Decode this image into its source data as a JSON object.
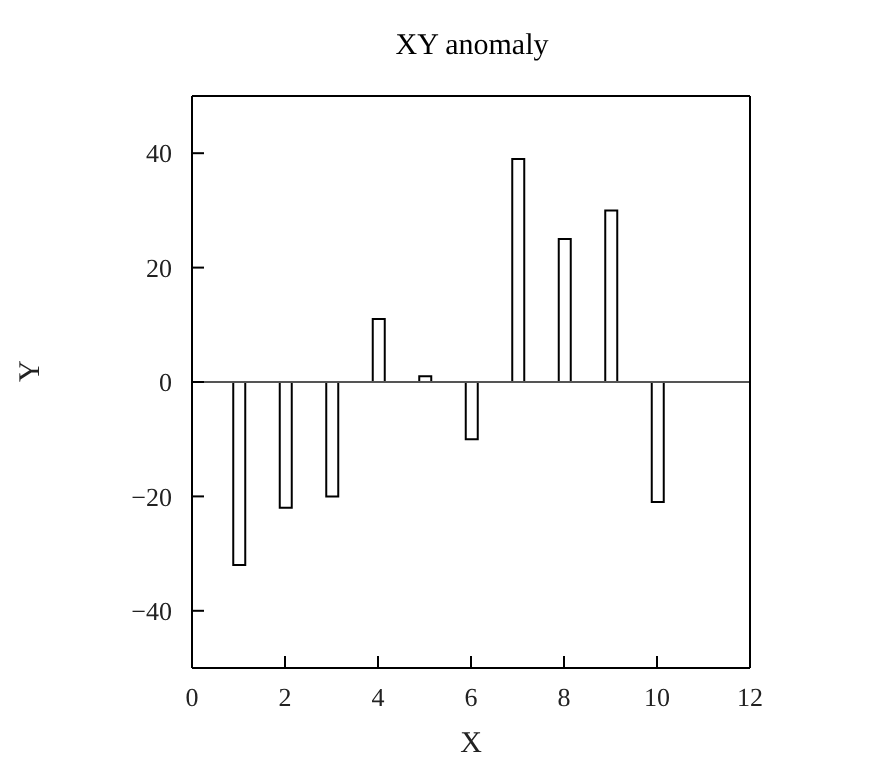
{
  "chart_data": {
    "type": "bar",
    "title": "XY anomaly",
    "xlabel": "X",
    "ylabel": "Y",
    "x": [
      1,
      2,
      3,
      4,
      5,
      6,
      7,
      8,
      9,
      10
    ],
    "values": [
      -32,
      -22,
      -20,
      11,
      1,
      -10,
      39,
      25,
      30,
      -21
    ],
    "color": "#000000",
    "xlim": [
      0,
      12
    ],
    "xticks": [
      0,
      2,
      4,
      6,
      8,
      10,
      12
    ],
    "ylim": [
      -50,
      50
    ],
    "yticks": [
      -40,
      -20,
      0,
      20,
      40
    ],
    "ref_lines": [
      {
        "axis": "y",
        "value": 0
      }
    ],
    "grid": false
  }
}
